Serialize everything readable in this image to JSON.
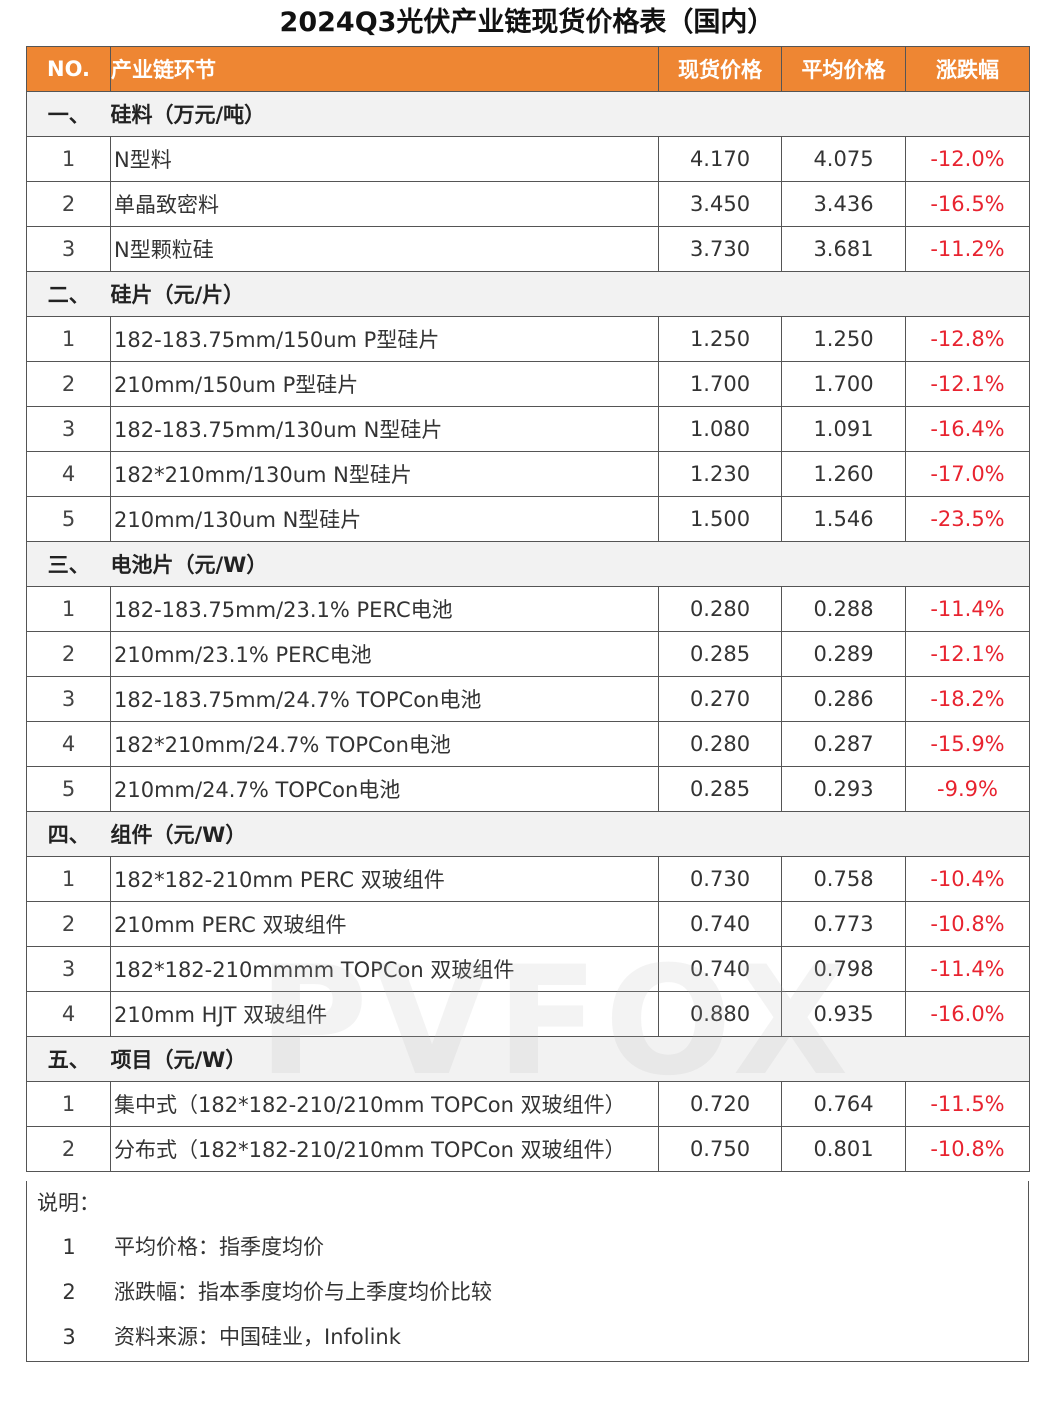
{
  "title": "2024Q3光伏产业链现货价格表（国内）",
  "header": {
    "no": "NO.",
    "segment": "产业链环节",
    "spot": "现货价格",
    "avg": "平均价格",
    "change": "涨跌幅"
  },
  "accent_color": "#ee8633",
  "change_color": "#e8232f",
  "sections": [
    {
      "no": "一、",
      "label": "硅料（万元/吨）",
      "rows": [
        {
          "no": "1",
          "name": "N型料",
          "spot": "4.170",
          "avg": "4.075",
          "change": "-12.0%"
        },
        {
          "no": "2",
          "name": "单晶致密料",
          "spot": "3.450",
          "avg": "3.436",
          "change": "-16.5%"
        },
        {
          "no": "3",
          "name": "N型颗粒硅",
          "spot": "3.730",
          "avg": "3.681",
          "change": "-11.2%"
        }
      ]
    },
    {
      "no": "二、",
      "label": "硅片（元/片）",
      "rows": [
        {
          "no": "1",
          "name": "182-183.75mm/150um P型硅片",
          "spot": "1.250",
          "avg": "1.250",
          "change": "-12.8%"
        },
        {
          "no": "2",
          "name": "210mm/150um P型硅片",
          "spot": "1.700",
          "avg": "1.700",
          "change": "-12.1%"
        },
        {
          "no": "3",
          "name": "182-183.75mm/130um N型硅片",
          "spot": "1.080",
          "avg": "1.091",
          "change": "-16.4%"
        },
        {
          "no": "4",
          "name": "182*210mm/130um N型硅片",
          "spot": "1.230",
          "avg": "1.260",
          "change": "-17.0%"
        },
        {
          "no": "5",
          "name": "210mm/130um N型硅片",
          "spot": "1.500",
          "avg": "1.546",
          "change": "-23.5%"
        }
      ]
    },
    {
      "no": "三、",
      "label": "电池片（元/W）",
      "rows": [
        {
          "no": "1",
          "name": "182-183.75mm/23.1% PERC电池",
          "spot": "0.280",
          "avg": "0.288",
          "change": "-11.4%"
        },
        {
          "no": "2",
          "name": "210mm/23.1% PERC电池",
          "spot": "0.285",
          "avg": "0.289",
          "change": "-12.1%"
        },
        {
          "no": "3",
          "name": "182-183.75mm/24.7% TOPCon电池",
          "spot": "0.270",
          "avg": "0.286",
          "change": "-18.2%"
        },
        {
          "no": "4",
          "name": "182*210mm/24.7% TOPCon电池",
          "spot": "0.280",
          "avg": "0.287",
          "change": "-15.9%"
        },
        {
          "no": "5",
          "name": "210mm/24.7% TOPCon电池",
          "spot": "0.285",
          "avg": "0.293",
          "change": "-9.9%"
        }
      ]
    },
    {
      "no": "四、",
      "label": "组件（元/W）",
      "rows": [
        {
          "no": "1",
          "name": "182*182-210mm PERC 双玻组件",
          "spot": "0.730",
          "avg": "0.758",
          "change": "-10.4%"
        },
        {
          "no": "2",
          "name": "210mm PERC 双玻组件",
          "spot": "0.740",
          "avg": "0.773",
          "change": "-10.8%"
        },
        {
          "no": "3",
          "name": "182*182-210mmmm TOPCon 双玻组件",
          "spot": "0.740",
          "avg": "0.798",
          "change": "-11.4%"
        },
        {
          "no": "4",
          "name": "210mm HJT 双玻组件",
          "spot": "0.880",
          "avg": "0.935",
          "change": "-16.0%"
        }
      ]
    },
    {
      "no": "五、",
      "label": "项目（元/W）",
      "rows": [
        {
          "no": "1",
          "name": "集中式（182*182-210/210mm TOPCon 双玻组件）",
          "spot": "0.720",
          "avg": "0.764",
          "change": "-11.5%"
        },
        {
          "no": "2",
          "name": "分布式（182*182-210/210mm TOPCon 双玻组件）",
          "spot": "0.750",
          "avg": "0.801",
          "change": "-10.8%"
        }
      ]
    }
  ],
  "notes": {
    "title": "说明：",
    "items": [
      {
        "no": "1",
        "text": "平均价格：指季度均价"
      },
      {
        "no": "2",
        "text": "涨跌幅：指本季度均价与上季度均价比较"
      },
      {
        "no": "3",
        "text": "资料来源：中国硅业，Infolink"
      }
    ]
  },
  "watermark": "PVFOX"
}
